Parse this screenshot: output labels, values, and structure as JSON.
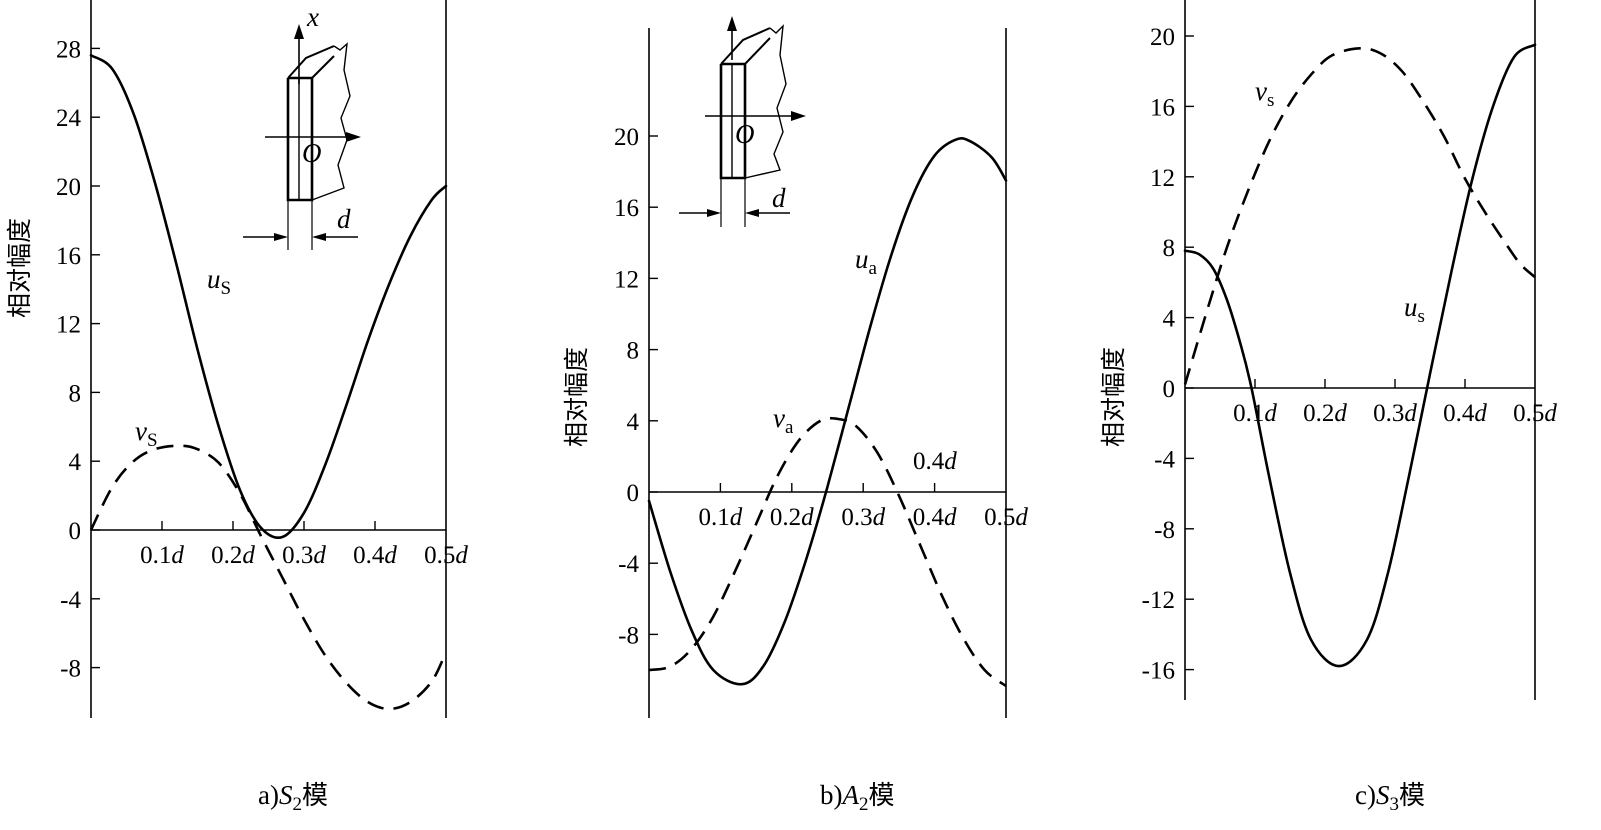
{
  "figure": {
    "captions": [
      {
        "prefix": "a)",
        "mode": "S",
        "sub": "2",
        "suffix": "模"
      },
      {
        "prefix": "b)",
        "mode": "A",
        "sub": "2",
        "suffix": "模"
      },
      {
        "prefix": "c)",
        "mode": "S",
        "sub": "3",
        "suffix": "模"
      }
    ],
    "ylabel": "相对幅度",
    "inset": {
      "axis_x": "x",
      "origin": "O",
      "thickness": "d"
    }
  },
  "chart_data": [
    {
      "type": "line",
      "ylabel": "相对幅度",
      "x_tick_labels": [
        "0.1d",
        "0.2d",
        "0.3d",
        "0.4d",
        "0.5d"
      ],
      "x_ticks": [
        0.1,
        0.2,
        0.3,
        0.4,
        0.5
      ],
      "y_ticks": [
        -8,
        -4,
        0,
        4,
        8,
        12,
        16,
        20,
        24,
        28
      ],
      "xlim": [
        0,
        0.5
      ],
      "ylim": [
        -10.5,
        30.5
      ],
      "series": [
        {
          "name": "u",
          "sub": "S",
          "style": "solid",
          "x": [
            0,
            0.03,
            0.06,
            0.09,
            0.12,
            0.15,
            0.18,
            0.21,
            0.24,
            0.27,
            0.3,
            0.33,
            0.36,
            0.39,
            0.42,
            0.45,
            0.48,
            0.5
          ],
          "y": [
            27.6,
            26.8,
            24.2,
            20.2,
            15.5,
            10.5,
            6.0,
            2.3,
            0.1,
            -0.4,
            1.0,
            3.8,
            7.3,
            11.0,
            14.3,
            17.1,
            19.2,
            20.0
          ]
        },
        {
          "name": "v",
          "sub": "S",
          "style": "dashed",
          "x": [
            0,
            0.03,
            0.06,
            0.09,
            0.125,
            0.15,
            0.18,
            0.21,
            0.24,
            0.27,
            0.3,
            0.33,
            0.36,
            0.39,
            0.42,
            0.45,
            0.48,
            0.5
          ],
          "y": [
            0,
            2.5,
            4.0,
            4.7,
            4.9,
            4.7,
            3.9,
            2.1,
            -0.4,
            -2.8,
            -5.2,
            -7.3,
            -8.9,
            -10.0,
            -10.4,
            -10.0,
            -8.8,
            -7.1
          ]
        }
      ]
    },
    {
      "type": "line",
      "ylabel": "相对幅度",
      "x_tick_labels": [
        "0.1d",
        "0.2d",
        "0.3d",
        "0.4d",
        "0.5d"
      ],
      "x_ticks": [
        0.1,
        0.2,
        0.3,
        0.4,
        0.5
      ],
      "y_ticks": [
        -8,
        -4,
        0,
        4,
        8,
        12,
        16,
        20
      ],
      "xlim": [
        0,
        0.5
      ],
      "ylim": [
        -12.5,
        26.5
      ],
      "series": [
        {
          "name": "u",
          "sub": "a",
          "style": "solid",
          "x": [
            0,
            0.03,
            0.06,
            0.09,
            0.13,
            0.16,
            0.19,
            0.22,
            0.25,
            0.28,
            0.31,
            0.34,
            0.37,
            0.4,
            0.43,
            0.45,
            0.48,
            0.5
          ],
          "y": [
            -0.5,
            -4.5,
            -7.8,
            -10.0,
            -10.8,
            -9.8,
            -7.3,
            -3.8,
            0.3,
            4.8,
            9.3,
            13.4,
            16.7,
            18.9,
            19.8,
            19.7,
            18.8,
            17.5
          ]
        },
        {
          "name": "v",
          "sub": "a",
          "style": "dashed",
          "x": [
            0,
            0.03,
            0.06,
            0.09,
            0.12,
            0.15,
            0.18,
            0.21,
            0.24,
            0.265,
            0.29,
            0.32,
            0.35,
            0.38,
            0.41,
            0.44,
            0.47,
            0.5
          ],
          "y": [
            -10.0,
            -9.8,
            -8.8,
            -7.0,
            -4.5,
            -1.8,
            0.9,
            2.9,
            4.0,
            4.1,
            3.7,
            2.2,
            -0.2,
            -3.0,
            -5.8,
            -8.2,
            -10.0,
            -10.9
          ]
        }
      ],
      "annotations": [
        "0.4d"
      ]
    },
    {
      "type": "line",
      "ylabel": "相对幅度",
      "x_tick_labels": [
        "0.1d",
        "0.2d",
        "0.3d",
        "0.4d",
        "0.5d"
      ],
      "x_ticks": [
        0.1,
        0.2,
        0.3,
        0.4,
        0.5
      ],
      "y_ticks": [
        -16,
        -12,
        -8,
        -4,
        0,
        4,
        8,
        12,
        16,
        20
      ],
      "xlim": [
        0,
        0.5
      ],
      "ylim": [
        -17.5,
        22
      ],
      "series": [
        {
          "name": "u",
          "sub": "s",
          "style": "solid",
          "x": [
            0,
            0.02,
            0.04,
            0.06,
            0.08,
            0.095,
            0.12,
            0.15,
            0.18,
            0.22,
            0.26,
            0.29,
            0.32,
            0.35,
            0.38,
            0.41,
            0.44,
            0.47,
            0.5
          ],
          "y": [
            7.8,
            7.6,
            6.8,
            5.0,
            2.4,
            0.0,
            -5.0,
            -10.5,
            -14.3,
            -15.8,
            -14.3,
            -10.5,
            -5.0,
            0.8,
            6.5,
            11.8,
            16.0,
            18.8,
            19.5
          ]
        },
        {
          "name": "v",
          "sub": "s",
          "style": "dashed",
          "x": [
            0,
            0.03,
            0.06,
            0.09,
            0.12,
            0.15,
            0.18,
            0.21,
            0.25,
            0.28,
            0.31,
            0.34,
            0.37,
            0.4,
            0.43,
            0.46,
            0.48,
            0.5
          ],
          "y": [
            0.2,
            4.2,
            8.0,
            11.2,
            14.0,
            16.2,
            17.8,
            18.9,
            19.3,
            19.0,
            18.0,
            16.3,
            14.3,
            11.9,
            9.9,
            8.1,
            7.0,
            6.3
          ]
        }
      ]
    }
  ]
}
